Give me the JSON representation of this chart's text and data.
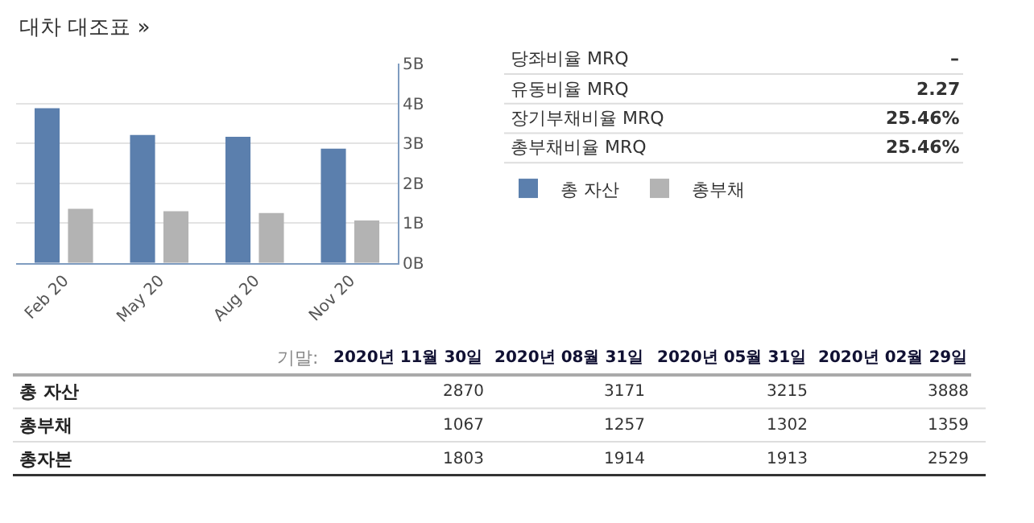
{
  "chart_data": [
    {
      "type": "bar",
      "title": "대차 대조표 »",
      "categories": [
        "Feb 20",
        "May 20",
        "Aug 20",
        "Nov 20"
      ],
      "series": [
        {
          "name": "총 자산",
          "color": "#5b7fad",
          "values": [
            3.888,
            3.215,
            3.171,
            2.87
          ]
        },
        {
          "name": "총부채",
          "color": "#b3b3b3",
          "values": [
            1.359,
            1.302,
            1.257,
            1.067
          ]
        }
      ],
      "ylim": [
        0,
        5
      ],
      "yticks": [
        {
          "value": 0,
          "label": "0B"
        },
        {
          "value": 1,
          "label": "1B"
        },
        {
          "value": 2,
          "label": "2B"
        },
        {
          "value": 3,
          "label": "3B"
        },
        {
          "value": 4,
          "label": "4B"
        },
        {
          "value": 5,
          "label": "5B"
        }
      ],
      "grid": "y",
      "legend": "right"
    },
    {
      "type": "other",
      "categories": [
        "당좌비율 MRQ",
        "유동비율 MRQ",
        "장기부채비율 MRQ",
        "총부채비율 MRQ"
      ],
      "value_labels": [
        "–",
        "2.27",
        "25.46%",
        "25.46%"
      ]
    },
    {
      "type": "other",
      "xlabel": "기말:",
      "categories": [
        "2020년 11월 30일",
        "2020년 08월 31일",
        "2020년 05월 31일",
        "2020년 02월 29일"
      ],
      "series": [
        {
          "name": "총 자산",
          "values": [
            2870,
            3171,
            3215,
            3888
          ],
          "value_labels": [
            "2870",
            "3171",
            "3215",
            "3888"
          ]
        },
        {
          "name": "총부채",
          "values": [
            1067,
            1257,
            1302,
            1359
          ],
          "value_labels": [
            "1067",
            "1257",
            "1302",
            "1359"
          ]
        },
        {
          "name": "총자본",
          "values": [
            1803,
            1914,
            1913,
            2529
          ],
          "value_labels": [
            "1803",
            "1914",
            "1913",
            "2529"
          ]
        }
      ]
    }
  ]
}
